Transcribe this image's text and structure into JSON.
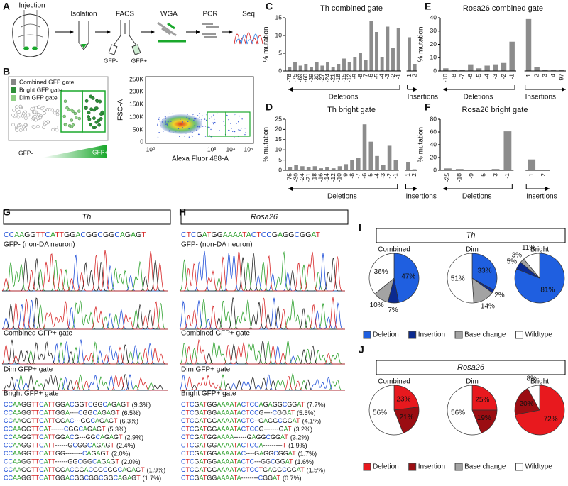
{
  "panel_labels": [
    "A",
    "B",
    "C",
    "D",
    "E",
    "F",
    "G",
    "H",
    "I",
    "J"
  ],
  "panel_a": {
    "steps": [
      "Injection",
      "Isolation",
      "FACS",
      "WGA",
      "PCR",
      "Seq"
    ],
    "gfp_neg": "GFP-",
    "gfp_pos": "GFP+"
  },
  "panel_b": {
    "gates": [
      "Combined GFP gate",
      "Bright GFP gate",
      "Dim GFP gate"
    ],
    "gradient": [
      "GFP-",
      "GFP+"
    ],
    "y_label": "FSC-A",
    "x_label": "Alexa Fluor 488-A",
    "y_ticks": [
      "250K",
      "200K",
      "150K",
      "100K",
      "50K",
      "0"
    ],
    "x_ticks": [
      "10⁰",
      "10³",
      "10⁴",
      "10⁵"
    ]
  },
  "chart_data": [
    {
      "type": "bar",
      "title": "Th combined gate",
      "ylabel": "% mutation",
      "color": "#8c8c8c",
      "ylim": [
        0,
        15
      ],
      "yticks": [
        0,
        5,
        10,
        15
      ],
      "categories": [
        "-78",
        "-75",
        "-69",
        "-60",
        "-39",
        "-30",
        "-27",
        "-24",
        "-21",
        "-18",
        "-15",
        "-12",
        "-9",
        "-8",
        "-7",
        "-6",
        "-5",
        "-4",
        "-3",
        "-2",
        "-1",
        "1",
        "2"
      ],
      "values": [
        1,
        2.5,
        1.5,
        2,
        1,
        2.5,
        1.5,
        2.5,
        1,
        2,
        3.5,
        2.5,
        4,
        5,
        3,
        14,
        11,
        4,
        12.5,
        6.5,
        12,
        9.5,
        2
      ],
      "annotations": [
        "Deletions",
        "Insertions"
      ]
    },
    {
      "type": "bar",
      "title": "Th bright gate",
      "ylabel": "% mutation",
      "color": "#8c8c8c",
      "ylim": [
        0,
        25
      ],
      "yticks": [
        0,
        5,
        10,
        15,
        20,
        25
      ],
      "categories": [
        "-75",
        "-30",
        "-24",
        "-21",
        "-18",
        "-16",
        "-14",
        "-12",
        "-10",
        "-9",
        "-8",
        "-7",
        "-6",
        "-5",
        "-4",
        "-3",
        "-2",
        "-1",
        "1",
        "2"
      ],
      "values": [
        1.5,
        2.5,
        2,
        1.5,
        2,
        1,
        1.5,
        1,
        2,
        3,
        5,
        6,
        22.5,
        14,
        7,
        2.5,
        12,
        5,
        4,
        0.5
      ],
      "annotations": [
        "Deletions",
        "Insertions"
      ]
    },
    {
      "type": "bar",
      "title": "Rosa26 combined gate",
      "ylabel": "% mutation",
      "color": "#8c8c8c",
      "ylim": [
        0,
        40
      ],
      "yticks": [
        0,
        10,
        20,
        30,
        40
      ],
      "categories": [
        "-10",
        "-8",
        "-7",
        "-6",
        "-5",
        "-4",
        "-3",
        "-2",
        "-1",
        "1",
        "2",
        "3",
        "4",
        "97"
      ],
      "values": [
        2,
        1,
        1,
        5,
        2,
        4,
        5,
        6,
        22,
        39,
        3,
        1,
        0.5,
        1
      ],
      "annotations": [
        "Deletions",
        "Insertions"
      ]
    },
    {
      "type": "bar",
      "title": "Rosa26 bright gate",
      "ylabel": "% mutation",
      "color": "#8c8c8c",
      "ylim": [
        0,
        80
      ],
      "yticks": [
        0,
        20,
        40,
        60,
        80
      ],
      "categories": [
        "-25",
        "-18",
        "-9",
        "-5",
        "-3",
        "-1",
        "1",
        "2"
      ],
      "values": [
        3,
        2,
        1,
        1,
        2,
        61,
        17,
        0.5
      ],
      "annotations": [
        "Deletions",
        "Insertions"
      ]
    },
    {
      "type": "pie",
      "title": "Th",
      "categories": [
        "Combined",
        "Dim",
        "Bright"
      ],
      "series": [
        {
          "name": "Deletion",
          "color": "#1f5fe0",
          "label_color": "#ffffff",
          "values": [
            47,
            33,
            81
          ],
          "value_labels": [
            "47%",
            "33%",
            "81%"
          ]
        },
        {
          "name": "Insertion",
          "color": "#0b2a8f",
          "label_color": "#ffffff",
          "values": [
            7,
            2,
            5
          ],
          "value_labels": [
            "7%",
            "2%",
            "5%"
          ]
        },
        {
          "name": "Base change",
          "color": "#a3a3a3",
          "label_color": "#111111",
          "values": [
            10,
            14,
            3
          ],
          "value_labels": [
            "10%",
            "14%",
            "3%"
          ]
        },
        {
          "name": "Wildtype",
          "color": "#ffffff",
          "label_color": "#111111",
          "values": [
            36,
            51,
            11
          ],
          "value_labels": [
            "36%",
            "51%",
            "11%"
          ]
        }
      ]
    },
    {
      "type": "pie",
      "title": "Rosa26",
      "categories": [
        "Combined",
        "Dim",
        "Bright"
      ],
      "series": [
        {
          "name": "Deletion",
          "color": "#e8191e",
          "label_color": "#ffffff",
          "values": [
            23,
            25,
            72
          ],
          "value_labels": [
            "23%",
            "25%",
            "72%"
          ]
        },
        {
          "name": "Insertion",
          "color": "#9b0d12",
          "label_color": "#ffffff",
          "values": [
            21,
            19,
            20
          ],
          "value_labels": [
            "21%",
            "19%",
            "20%"
          ]
        },
        {
          "name": "Base change",
          "color": "#a3a3a3",
          "label_color": "#111111",
          "values": [
            0,
            0,
            0
          ],
          "value_labels": [
            null,
            null,
            null
          ]
        },
        {
          "name": "Wildtype",
          "color": "#ffffff",
          "label_color": "#111111",
          "values": [
            56,
            56,
            8
          ],
          "value_labels": [
            "56%",
            "56%",
            "8%"
          ]
        }
      ]
    }
  ],
  "panel_g": {
    "gene": "Th",
    "reference": "CCAAGGTTCATTGGACGGCGGCAGAGT",
    "traces": [
      "GFP- (non-DA neuron)",
      "Combined GFP+ gate",
      "Dim GFP+ gate",
      "Bright GFP+ gate"
    ],
    "alleles": [
      {
        "sequence": "CCAAGGTTCATTGGACGGTCGGCAGAGT",
        "frequency": "(9.3%)"
      },
      {
        "sequence": "CCAAGGTTCATTGGA----CGGCAGAGT",
        "frequency": "(6.5%)"
      },
      {
        "sequence": "CCAAGGTTCATTGGAC---GGCAGAGT",
        "frequency": "(6.3%)"
      },
      {
        "sequence": "CCAAGGTTCAT------CGGCAGAGT",
        "frequency": "(5.3%)"
      },
      {
        "sequence": "CCAAGGTTCATTGGACG---GGCAGAGT",
        "frequency": "(2.9%)"
      },
      {
        "sequence": "CCAAGGTTCATT------GCGGCAGAGT",
        "frequency": "(2.4%)"
      },
      {
        "sequence": "CCAAGGTTCATTGG--------CAGAGT",
        "frequency": "(2.0%)"
      },
      {
        "sequence": "CCAAGGTTCATT------GGCGGCAGAGT",
        "frequency": "(2.0%)"
      },
      {
        "sequence": "CCAAGGTTCATTGGACGGACGGCGGCAGAGT",
        "frequency": "(1.9%)"
      },
      {
        "sequence": "CCAAGGTTCATTGGACGGCGGCGGCAGAGT",
        "frequency": "(1.7%)"
      }
    ]
  },
  "panel_h": {
    "gene": "Rosa26",
    "reference": "CTCGATGGAAAATACTCCGAGGCGGAT",
    "traces": [
      "GFP- (non-DA neuron)",
      "Combined GFP+ gate",
      "Dim GFP+ gate",
      "Bright GFP+ gate"
    ],
    "alleles": [
      {
        "sequence": "CTCGATGGAAAATACTCCAGAGGCGGAT",
        "frequency": "(7.7%)"
      },
      {
        "sequence": "CTCGATGGAAAATACTCCG----CGGAT",
        "frequency": "(5.5%)"
      },
      {
        "sequence": "CTCGATGGAAAATACTC--GAGGCGGAT",
        "frequency": "(4.1%)"
      },
      {
        "sequence": "CTCGATGGAAAATACTCCG-------GAT",
        "frequency": "(3.2%)"
      },
      {
        "sequence": "CTCGATGGAAAA------GAGGCGGAT",
        "frequency": "(3.2%)"
      },
      {
        "sequence": "CTCGATGGAAAATACTCCA---------T",
        "frequency": "(1.9%)"
      },
      {
        "sequence": "CTCGATGGAAAATAC----GAGGCGGAT",
        "frequency": "(1.7%)"
      },
      {
        "sequence": "CTCGATGGAAAATACTC---GGCGGAT",
        "frequency": "(1.6%)"
      },
      {
        "sequence": "CTCGATGGAAAATACTCCTGAGGCGGAT",
        "frequency": "(1.5%)"
      },
      {
        "sequence": "CTCGATGGAAAATA--------CGGAT",
        "frequency": "(0.7%)"
      }
    ]
  }
}
